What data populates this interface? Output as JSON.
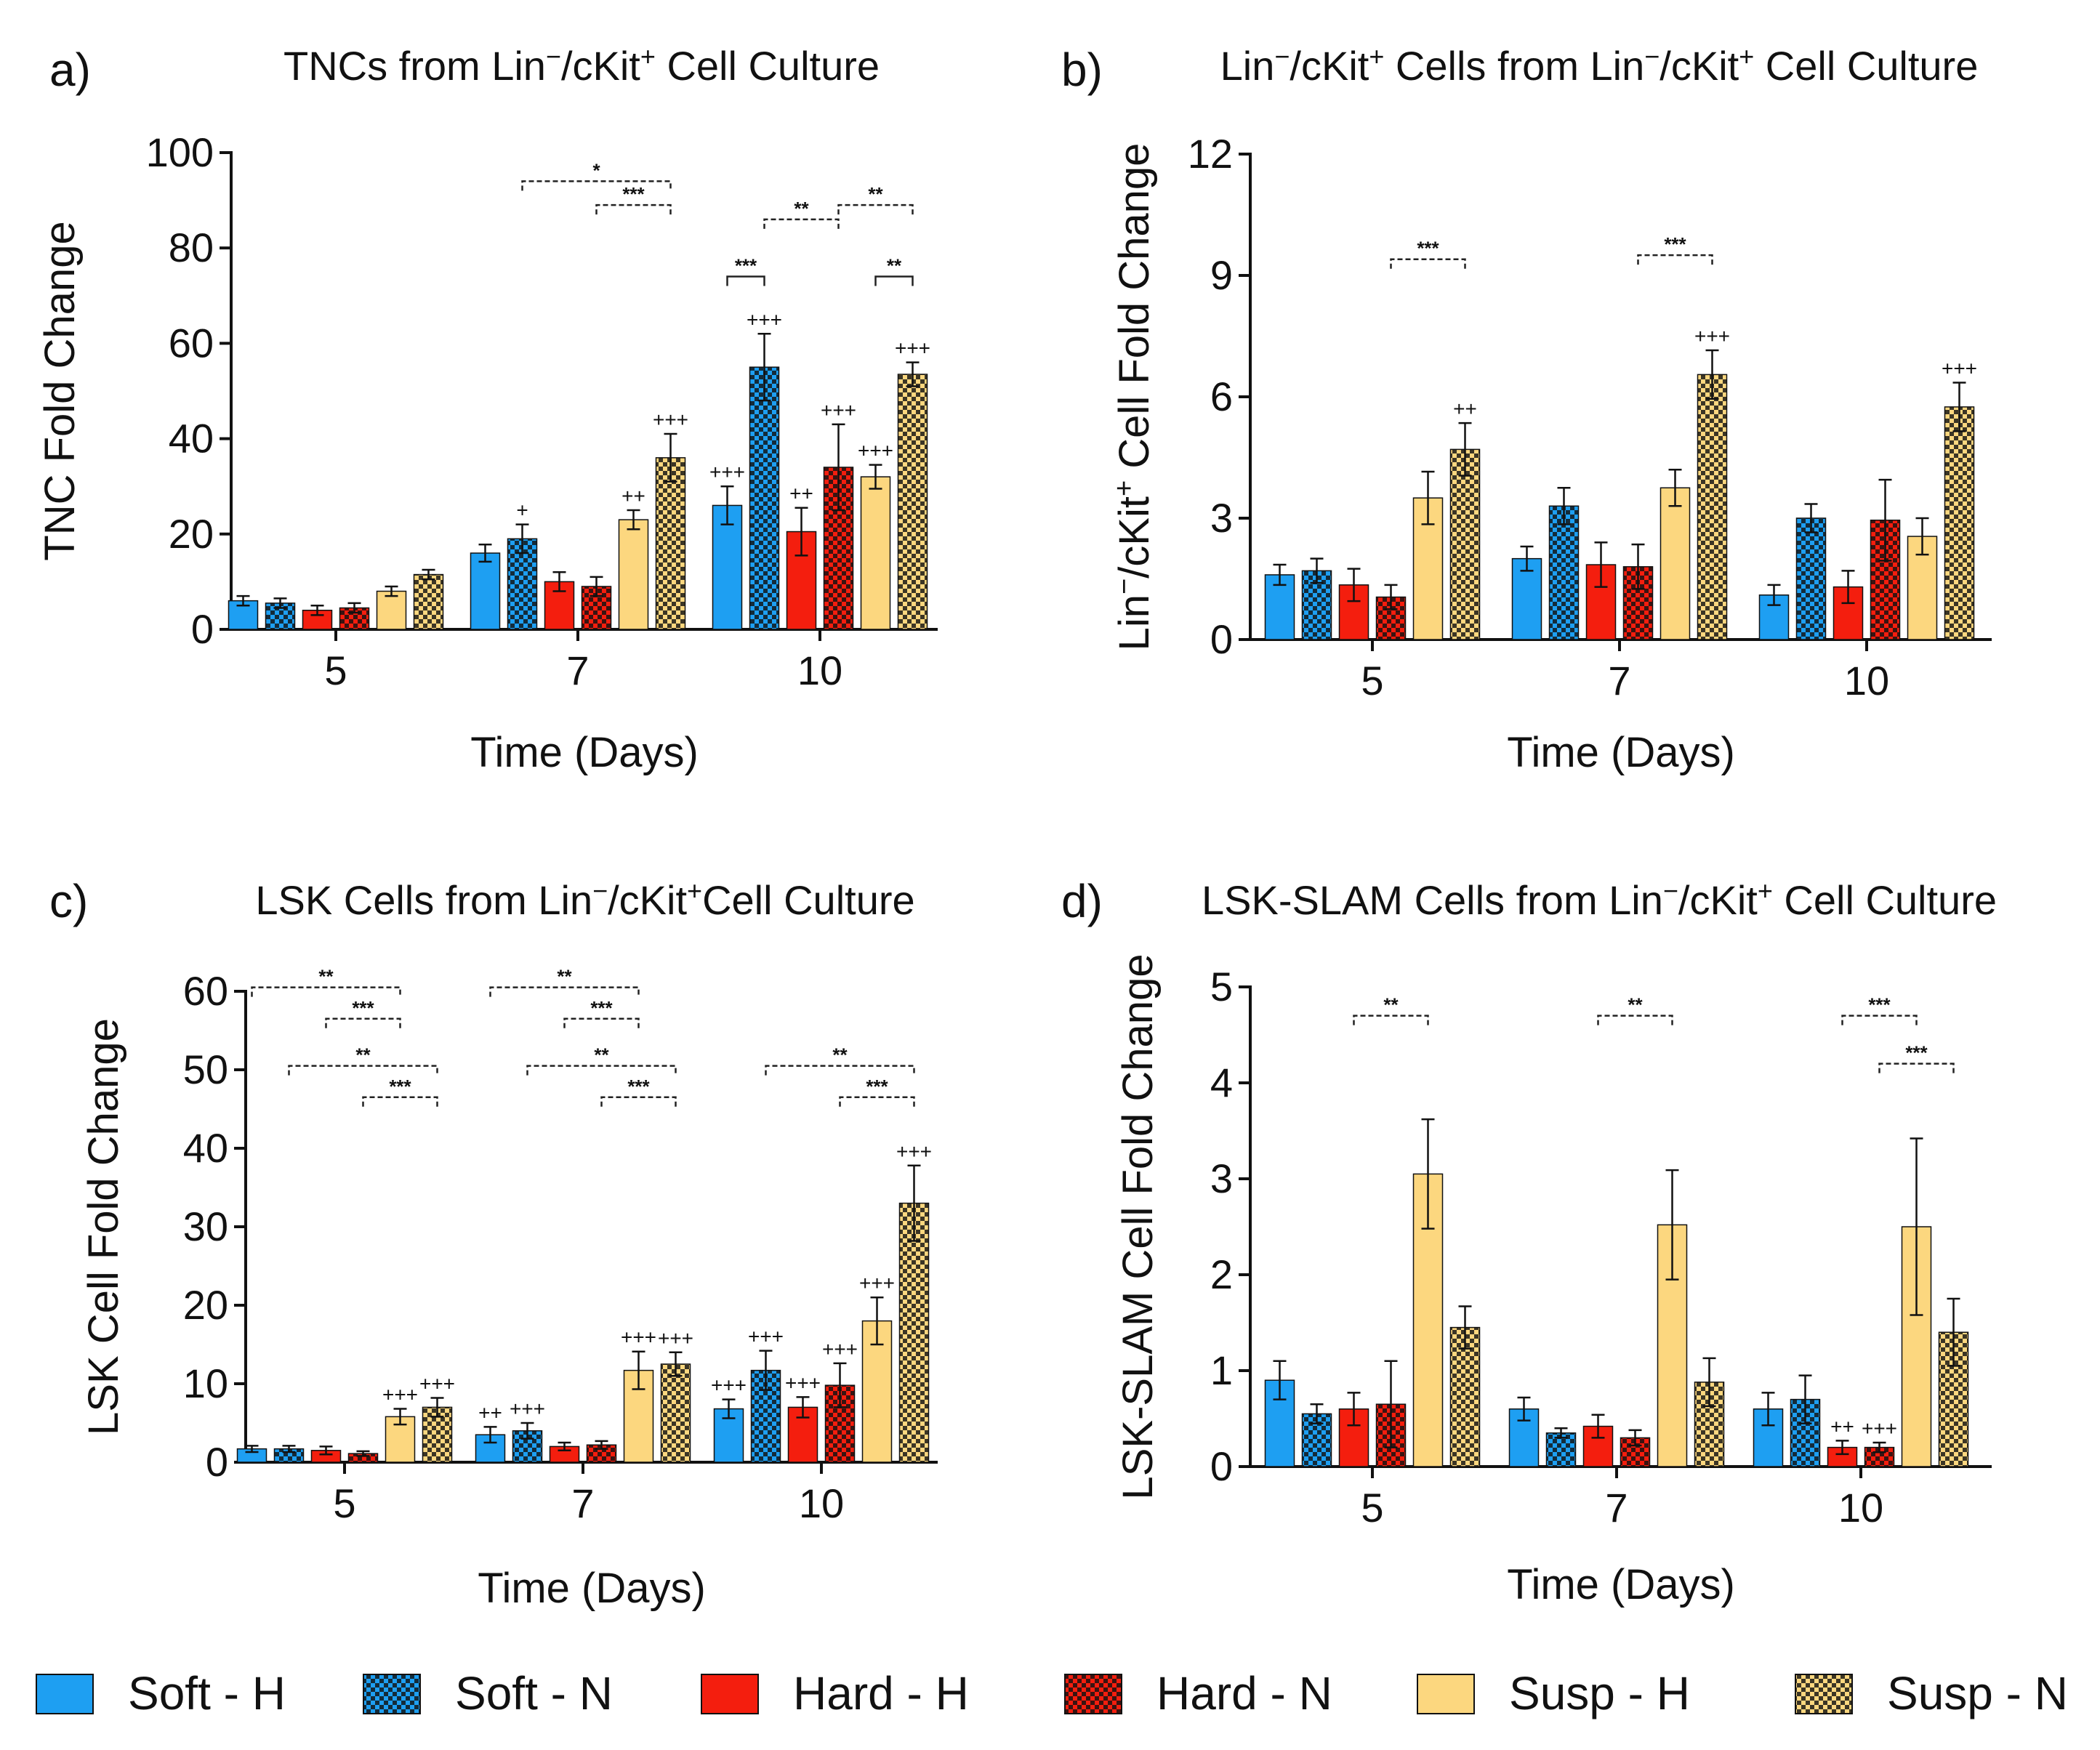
{
  "colors": {
    "soft_h": "#1e9ff2",
    "soft_n": "#1e9ff2",
    "hard_h": "#f41e0e",
    "hard_n": "#f41e0e",
    "susp_h": "#fcd77f",
    "susp_n": "#fcd77f",
    "hatch": "#111111"
  },
  "legend": {
    "items": [
      {
        "key": "soft_h",
        "label": "Soft - H",
        "pattern": "solid"
      },
      {
        "key": "soft_n",
        "label": "Soft - N",
        "pattern": "checker"
      },
      {
        "key": "hard_h",
        "label": "Hard - H",
        "pattern": "solid"
      },
      {
        "key": "hard_n",
        "label": "Hard - N",
        "pattern": "checker"
      },
      {
        "key": "susp_h",
        "label": "Susp - H",
        "pattern": "solid"
      },
      {
        "key": "susp_n",
        "label": "Susp - N",
        "pattern": "checker"
      }
    ]
  },
  "chart_data": [
    {
      "id": "a",
      "panel_label": "a)",
      "type": "bar",
      "title_parts": [
        "TNCs from Lin",
        "-",
        "/cKit",
        "+",
        " Cell Culture"
      ],
      "xlabel": "Time (Days)",
      "ylabel_parts": [
        "TNC Fold Change"
      ],
      "categories": [
        "5",
        "7",
        "10"
      ],
      "ylim": [
        0,
        100
      ],
      "yticks": [
        "0",
        "20",
        "40",
        "60",
        "80",
        "100"
      ],
      "series": [
        {
          "name": "Soft - H",
          "key": "soft_h",
          "values": [
            6,
            16,
            26
          ],
          "errors": [
            1,
            1.8,
            4
          ]
        },
        {
          "name": "Soft - N",
          "key": "soft_n",
          "values": [
            5.5,
            19,
            55
          ],
          "errors": [
            1,
            3,
            7
          ]
        },
        {
          "name": "Hard - H",
          "key": "hard_h",
          "values": [
            4,
            10,
            20.5
          ],
          "errors": [
            1,
            2,
            5
          ]
        },
        {
          "name": "Hard - N",
          "key": "hard_n",
          "values": [
            4.5,
            9,
            34
          ],
          "errors": [
            1,
            2,
            9
          ]
        },
        {
          "name": "Susp - H",
          "key": "susp_h",
          "values": [
            8,
            23,
            32
          ],
          "errors": [
            1,
            2,
            2.5
          ]
        },
        {
          "name": "Susp - N",
          "key": "susp_n",
          "values": [
            11.5,
            36,
            53.5
          ],
          "errors": [
            1,
            5,
            2.5
          ]
        }
      ],
      "plus_marks": [
        {
          "cat": 1,
          "s": 1,
          "text": "+"
        },
        {
          "cat": 1,
          "s": 4,
          "text": "++"
        },
        {
          "cat": 1,
          "s": 5,
          "text": "+++"
        },
        {
          "cat": 2,
          "s": 0,
          "text": "+++"
        },
        {
          "cat": 2,
          "s": 1,
          "text": "+++"
        },
        {
          "cat": 2,
          "s": 2,
          "text": "++"
        },
        {
          "cat": 2,
          "s": 3,
          "text": "+++"
        },
        {
          "cat": 2,
          "s": 4,
          "text": "+++"
        },
        {
          "cat": 2,
          "s": 5,
          "text": "+++"
        }
      ],
      "brackets": [
        {
          "c1": 1,
          "s1": 1,
          "c2": 1,
          "s2": 5,
          "level": 94,
          "text": "*",
          "style": "dashed"
        },
        {
          "c1": 1,
          "s1": 3,
          "c2": 1,
          "s2": 5,
          "level": 89,
          "text": "***",
          "style": "dashed"
        },
        {
          "c1": 2,
          "s1": 1,
          "c2": 2,
          "s2": 3,
          "level": 86,
          "text": "**",
          "style": "dashed"
        },
        {
          "c1": 2,
          "s1": 3,
          "c2": 2,
          "s2": 5,
          "level": 89,
          "text": "**",
          "style": "dashed"
        },
        {
          "c1": 2,
          "s1": 0,
          "c2": 2,
          "s2": 1,
          "level": 74,
          "text": "***",
          "style": "solid"
        },
        {
          "c1": 2,
          "s1": 4,
          "c2": 2,
          "s2": 5,
          "level": 74,
          "text": "**",
          "style": "solid"
        }
      ]
    },
    {
      "id": "b",
      "panel_label": "b)",
      "type": "bar",
      "title_parts": [
        "Lin",
        "-",
        "/cKit",
        "+",
        " Cells from Lin",
        "-",
        "/cKit",
        "+",
        " Cell Culture"
      ],
      "xlabel": "Time (Days)",
      "ylabel_parts": [
        "Lin",
        "-",
        "/cKit",
        "+",
        " Cell Fold Change"
      ],
      "categories": [
        "5",
        "7",
        "10"
      ],
      "ylim": [
        0,
        12
      ],
      "yticks": [
        "0",
        "3",
        "6",
        "9",
        "12"
      ],
      "series": [
        {
          "name": "Soft - H",
          "key": "soft_h",
          "values": [
            1.6,
            2.0,
            1.1
          ],
          "errors": [
            0.25,
            0.3,
            0.25
          ]
        },
        {
          "name": "Soft - N",
          "key": "soft_n",
          "values": [
            1.7,
            3.3,
            3.0
          ],
          "errors": [
            0.3,
            0.45,
            0.35
          ]
        },
        {
          "name": "Hard - H",
          "key": "hard_h",
          "values": [
            1.35,
            1.85,
            1.3
          ],
          "errors": [
            0.4,
            0.55,
            0.4
          ]
        },
        {
          "name": "Hard - N",
          "key": "hard_n",
          "values": [
            1.05,
            1.8,
            2.95
          ],
          "errors": [
            0.3,
            0.55,
            1.0
          ]
        },
        {
          "name": "Susp - H",
          "key": "susp_h",
          "values": [
            3.5,
            3.75,
            2.55
          ],
          "errors": [
            0.65,
            0.45,
            0.45
          ]
        },
        {
          "name": "Susp - N",
          "key": "susp_n",
          "values": [
            4.7,
            6.55,
            5.75
          ],
          "errors": [
            0.65,
            0.6,
            0.6
          ]
        }
      ],
      "plus_marks": [
        {
          "cat": 0,
          "s": 5,
          "text": "++"
        },
        {
          "cat": 1,
          "s": 5,
          "text": "+++"
        },
        {
          "cat": 2,
          "s": 5,
          "text": "+++"
        }
      ],
      "brackets": [
        {
          "c1": 0,
          "s1": 3,
          "c2": 0,
          "s2": 5,
          "level": 9.4,
          "text": "***",
          "style": "dashed"
        },
        {
          "c1": 1,
          "s1": 3,
          "c2": 1,
          "s2": 5,
          "level": 9.5,
          "text": "***",
          "style": "dashed"
        }
      ]
    },
    {
      "id": "c",
      "panel_label": "c)",
      "type": "bar",
      "title_parts": [
        "LSK Cells from Lin",
        "-",
        "/cKit",
        "+",
        "Cell Culture"
      ],
      "xlabel": "Time (Days)",
      "ylabel_parts": [
        "LSK Cell Fold Change"
      ],
      "categories": [
        "5",
        "7",
        "10"
      ],
      "ylim": [
        0,
        60
      ],
      "yticks": [
        "0",
        "10",
        "20",
        "30",
        "40",
        "50",
        "60"
      ],
      "series": [
        {
          "name": "Soft - H",
          "key": "soft_h",
          "values": [
            1.7,
            3.5,
            6.8
          ],
          "errors": [
            0.4,
            1.0,
            1.2
          ]
        },
        {
          "name": "Soft - N",
          "key": "soft_n",
          "values": [
            1.7,
            4.0,
            11.7
          ],
          "errors": [
            0.4,
            1.0,
            2.5
          ]
        },
        {
          "name": "Hard - H",
          "key": "hard_h",
          "values": [
            1.5,
            2.0,
            7.0
          ],
          "errors": [
            0.5,
            0.5,
            1.3
          ]
        },
        {
          "name": "Hard - N",
          "key": "hard_n",
          "values": [
            1.1,
            2.2,
            9.8
          ],
          "errors": [
            0.3,
            0.5,
            2.8
          ]
        },
        {
          "name": "Susp - H",
          "key": "susp_h",
          "values": [
            5.8,
            11.7,
            18.0
          ],
          "errors": [
            1.0,
            2.4,
            3.0
          ]
        },
        {
          "name": "Susp - N",
          "key": "susp_n",
          "values": [
            7.0,
            12.5,
            33.0
          ],
          "errors": [
            1.2,
            1.5,
            4.8
          ]
        }
      ],
      "plus_marks": [
        {
          "cat": 0,
          "s": 4,
          "text": "+++"
        },
        {
          "cat": 0,
          "s": 5,
          "text": "+++"
        },
        {
          "cat": 1,
          "s": 0,
          "text": "++"
        },
        {
          "cat": 1,
          "s": 1,
          "text": "+++"
        },
        {
          "cat": 1,
          "s": 4,
          "text": "+++"
        },
        {
          "cat": 1,
          "s": 5,
          "text": "+++"
        },
        {
          "cat": 2,
          "s": 0,
          "text": "+++"
        },
        {
          "cat": 2,
          "s": 1,
          "text": "+++"
        },
        {
          "cat": 2,
          "s": 2,
          "text": "+++"
        },
        {
          "cat": 2,
          "s": 3,
          "text": "+++"
        },
        {
          "cat": 2,
          "s": 4,
          "text": "+++"
        },
        {
          "cat": 2,
          "s": 5,
          "text": "+++"
        }
      ],
      "brackets": [
        {
          "c1": 0,
          "s1": 0,
          "c2": 0,
          "s2": 4,
          "level": 60.5,
          "text": "**",
          "style": "dashed"
        },
        {
          "c1": 0,
          "s1": 2,
          "c2": 0,
          "s2": 4,
          "level": 56.5,
          "text": "***",
          "style": "dashed"
        },
        {
          "c1": 0,
          "s1": 1,
          "c2": 0,
          "s2": 5,
          "level": 50.5,
          "text": "**",
          "style": "dashed"
        },
        {
          "c1": 0,
          "s1": 3,
          "c2": 0,
          "s2": 5,
          "level": 46.5,
          "text": "***",
          "style": "dashed"
        },
        {
          "c1": 1,
          "s1": 0,
          "c2": 1,
          "s2": 4,
          "level": 60.5,
          "text": "**",
          "style": "dashed"
        },
        {
          "c1": 1,
          "s1": 2,
          "c2": 1,
          "s2": 4,
          "level": 56.5,
          "text": "***",
          "style": "dashed"
        },
        {
          "c1": 1,
          "s1": 1,
          "c2": 1,
          "s2": 5,
          "level": 50.5,
          "text": "**",
          "style": "dashed"
        },
        {
          "c1": 1,
          "s1": 3,
          "c2": 1,
          "s2": 5,
          "level": 46.5,
          "text": "***",
          "style": "dashed"
        },
        {
          "c1": 2,
          "s1": 1,
          "c2": 2,
          "s2": 5,
          "level": 50.5,
          "text": "**",
          "style": "dashed"
        },
        {
          "c1": 2,
          "s1": 3,
          "c2": 2,
          "s2": 5,
          "level": 46.5,
          "text": "***",
          "style": "dashed"
        }
      ]
    },
    {
      "id": "d",
      "panel_label": "d)",
      "type": "bar",
      "title_parts": [
        "LSK-SLAM Cells from Lin",
        "-",
        "/cKit",
        "+",
        " Cell Culture"
      ],
      "xlabel": "Time (Days)",
      "ylabel_parts": [
        "LSK-SLAM Cell Fold Change"
      ],
      "categories": [
        "5",
        "7",
        "10"
      ],
      "ylim": [
        0,
        5
      ],
      "yticks": [
        "0",
        "1",
        "2",
        "3",
        "4",
        "5"
      ],
      "series": [
        {
          "name": "Soft - H",
          "key": "soft_h",
          "values": [
            0.9,
            0.6,
            0.6
          ],
          "errors": [
            0.2,
            0.12,
            0.17
          ]
        },
        {
          "name": "Soft - N",
          "key": "soft_n",
          "values": [
            0.55,
            0.35,
            0.7
          ],
          "errors": [
            0.1,
            0.05,
            0.25
          ]
        },
        {
          "name": "Hard - H",
          "key": "hard_h",
          "values": [
            0.6,
            0.42,
            0.2
          ],
          "errors": [
            0.17,
            0.12,
            0.07
          ]
        },
        {
          "name": "Hard - N",
          "key": "hard_n",
          "values": [
            0.65,
            0.3,
            0.2
          ],
          "errors": [
            0.45,
            0.08,
            0.05
          ]
        },
        {
          "name": "Susp - H",
          "key": "susp_h",
          "values": [
            3.05,
            2.52,
            2.5
          ],
          "errors": [
            0.57,
            0.57,
            0.92
          ]
        },
        {
          "name": "Susp - N",
          "key": "susp_n",
          "values": [
            1.45,
            0.88,
            1.4
          ],
          "errors": [
            0.22,
            0.25,
            0.35
          ]
        }
      ],
      "plus_marks": [
        {
          "cat": 2,
          "s": 2,
          "text": "++"
        },
        {
          "cat": 2,
          "s": 3,
          "text": "+++"
        }
      ],
      "brackets": [
        {
          "c1": 0,
          "s1": 2,
          "c2": 0,
          "s2": 4,
          "level": 4.7,
          "text": "**",
          "style": "dashed"
        },
        {
          "c1": 1,
          "s1": 2,
          "c2": 1,
          "s2": 4,
          "level": 4.7,
          "text": "**",
          "style": "dashed"
        },
        {
          "c1": 2,
          "s1": 2,
          "c2": 2,
          "s2": 4,
          "level": 4.7,
          "text": "***",
          "style": "dashed"
        },
        {
          "c1": 2,
          "s1": 3,
          "c2": 2,
          "s2": 5,
          "level": 4.2,
          "text": "***",
          "style": "dashed"
        }
      ]
    }
  ]
}
